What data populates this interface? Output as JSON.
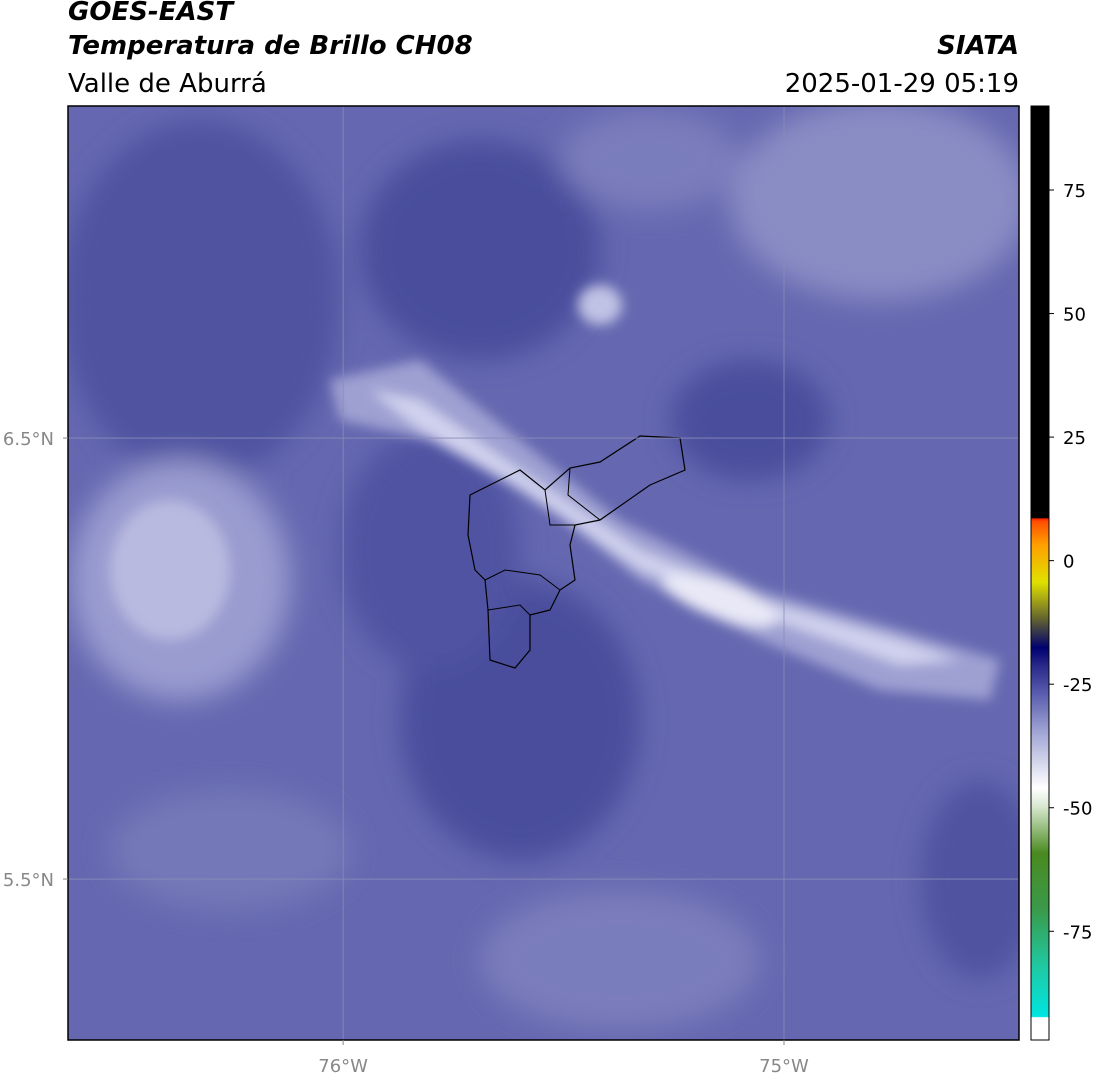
{
  "header": {
    "title": "GOES-EAST",
    "subtitle": "Temperatura de Brillo CH08",
    "region": "Valle de Aburrá",
    "source": "SIATA",
    "timestamp": "2025-01-29 05:19"
  },
  "map": {
    "xlim": [
      -76.624,
      -74.467
    ],
    "ylim": [
      5.135,
      7.253
    ],
    "xticks": [
      {
        "value": -76,
        "label": "76°W"
      },
      {
        "value": -75,
        "label": "75°W"
      }
    ],
    "yticks": [
      {
        "value": 6.5,
        "label": "6.5°N"
      },
      {
        "value": 5.5,
        "label": "5.5°N"
      }
    ]
  },
  "colorbar": {
    "lim": [
      -97,
      92
    ],
    "ticks": [
      75,
      50,
      25,
      0,
      -25,
      -50,
      -75
    ]
  }
}
